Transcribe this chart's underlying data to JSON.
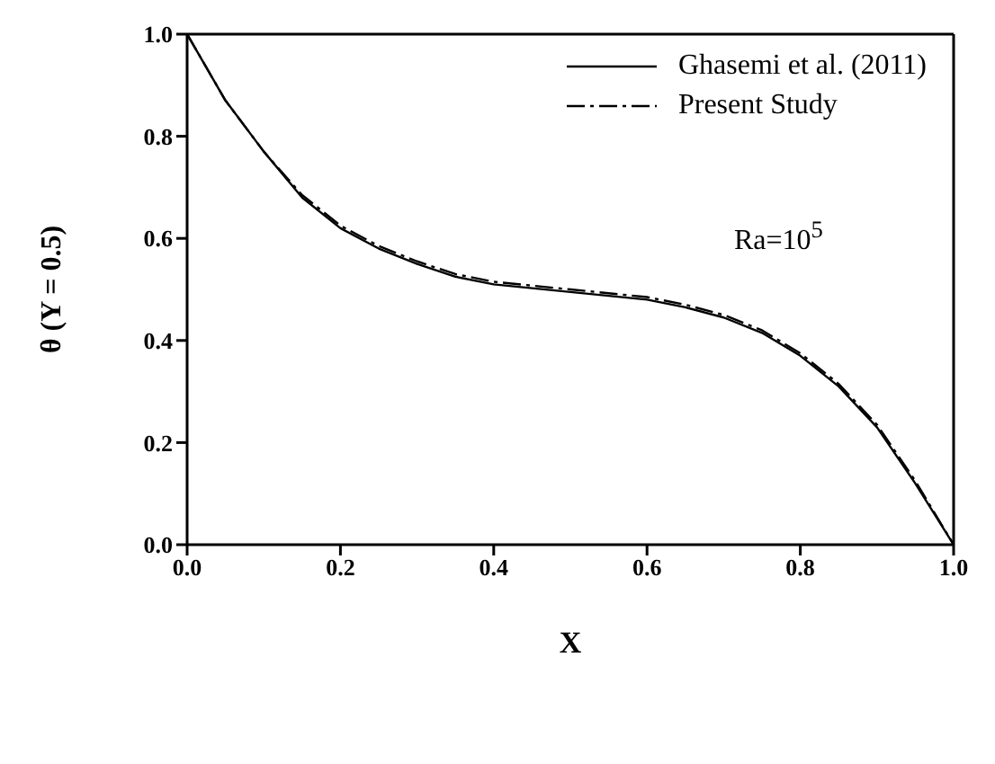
{
  "chart_data": {
    "type": "line",
    "xlabel": "X",
    "ylabel": "θ (Y = 0.5)",
    "annotations": [
      "Ra=10$^{5}$"
    ],
    "xlim": [
      0,
      1
    ],
    "xticks": [
      {
        "value": 0,
        "label": "0.0"
      },
      0.2,
      0.4,
      0.6,
      0.8,
      {
        "value": 1,
        "label": "1.0"
      }
    ],
    "ylim": [
      0,
      1
    ],
    "yticks": [
      {
        "value": 0,
        "label": "0.0"
      },
      0.2,
      0.4,
      0.6,
      0.8,
      {
        "value": 1,
        "label": "1.0"
      }
    ],
    "grid": false,
    "legend": "top right",
    "marker": "none",
    "x": [
      0,
      0.05,
      0.1,
      0.15,
      0.2,
      0.25,
      0.3,
      0.35,
      0.4,
      0.5,
      0.6,
      0.65,
      0.7,
      0.75,
      0.8,
      0.85,
      0.9,
      0.95,
      1
    ],
    "series": [
      {
        "name": "Ghasemi et al. (2011)",
        "color": "#000000",
        "line_style": "solid",
        "values": [
          1.0,
          0.87,
          0.77,
          0.68,
          0.62,
          0.58,
          0.55,
          0.525,
          0.51,
          0.495,
          0.48,
          0.465,
          0.445,
          0.415,
          0.37,
          0.31,
          0.23,
          0.12,
          0.0
        ]
      },
      {
        "name": "Present Study",
        "color": "#000000",
        "line_style": "dashed",
        "values": [
          1.0,
          0.87,
          0.77,
          0.685,
          0.625,
          0.585,
          0.555,
          0.53,
          0.515,
          0.5,
          0.485,
          0.47,
          0.45,
          0.42,
          0.375,
          0.315,
          0.235,
          0.125,
          0.0
        ]
      }
    ]
  }
}
